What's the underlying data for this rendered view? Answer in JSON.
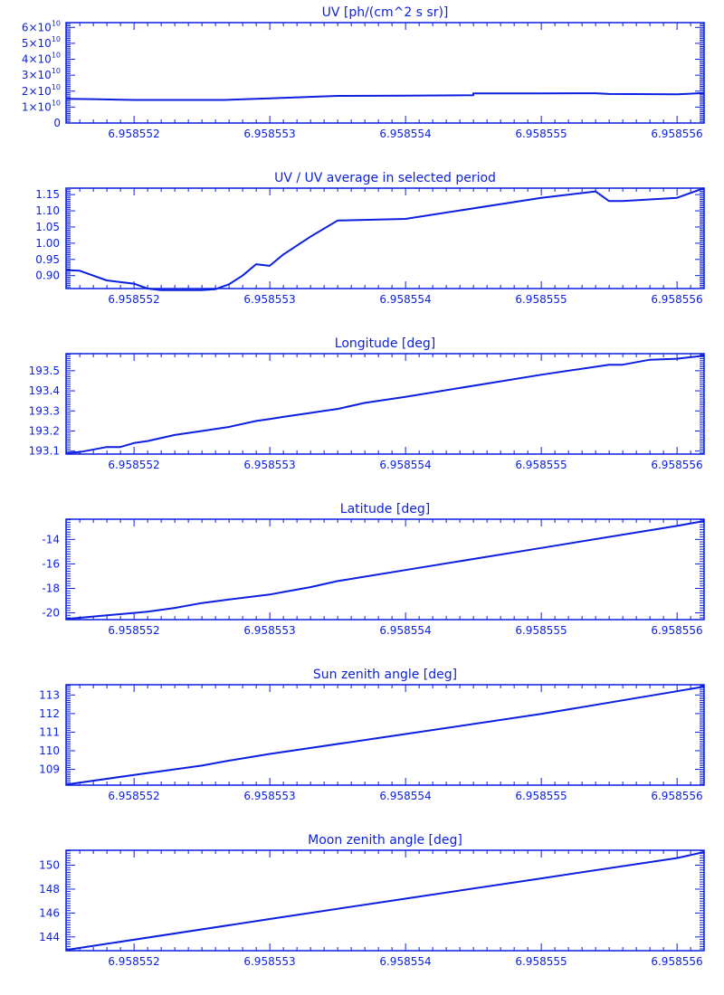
{
  "colors": {
    "plot": "#0b1fe0",
    "background": "#ffffff"
  },
  "x_tick_labels": [
    "6.958552",
    "6.958553",
    "6.958554",
    "6.958555",
    "6.958556"
  ],
  "chart_data": [
    {
      "type": "line",
      "title": "UV [ph/(cm^2 s sr)]",
      "x": [
        6.9585515,
        6.9585517,
        6.958552,
        6.958552667,
        6.958553,
        6.9585535,
        6.958554,
        6.9585545,
        6.9585545,
        6.958555,
        6.9585554,
        6.9585555,
        6.958556,
        6.9585562
      ],
      "y": [
        15200000000.0,
        15000000000.0,
        14500000000.0,
        14500000000.0,
        15500000000.0,
        17000000000.0,
        17200000000.0,
        17400000000.0,
        18600000000.0,
        18600000000.0,
        18700000000.0,
        18200000000.0,
        18000000000.0,
        18800000000.0
      ],
      "xlim": [
        6.9585515,
        6.9585562
      ],
      "ylim": [
        0,
        63000000000.0
      ],
      "ytick_values": [
        0,
        10000000000.0,
        20000000000.0,
        30000000000.0,
        40000000000.0,
        50000000000.0,
        60000000000.0
      ],
      "ytick_mantissa": [
        "0",
        "1",
        "2",
        "3",
        "4",
        "5",
        "6"
      ],
      "ytick_base": "×10",
      "ytick_exponent": "10",
      "grid": false
    },
    {
      "type": "line",
      "title": "UV / UV average in selected period",
      "x": [
        6.9585515,
        6.9585516,
        6.9585518,
        6.958552,
        6.9585521,
        6.9585522,
        6.9585525,
        6.9585526,
        6.9585527,
        6.9585528,
        6.9585529,
        6.958553,
        6.9585531,
        6.9585533,
        6.9585535,
        6.958554,
        6.958555,
        6.9585554,
        6.9585555,
        6.9585556,
        6.958556,
        6.9585562
      ],
      "y": [
        0.917,
        0.915,
        0.885,
        0.875,
        0.86,
        0.855,
        0.855,
        0.858,
        0.873,
        0.9,
        0.935,
        0.93,
        0.965,
        1.02,
        1.07,
        1.075,
        1.14,
        1.16,
        1.13,
        1.13,
        1.14,
        1.17
      ],
      "xlim": [
        6.9585515,
        6.9585562
      ],
      "ylim": [
        0.86,
        1.17
      ],
      "ytick_values": [
        0.9,
        0.95,
        1.0,
        1.05,
        1.1,
        1.15
      ],
      "ytick_labels": [
        "0.90",
        "0.95",
        "1.00",
        "1.05",
        "1.10",
        "1.15"
      ],
      "grid": false
    },
    {
      "type": "line",
      "title": "Longitude [deg]",
      "x": [
        6.9585515,
        6.9585516,
        6.9585518,
        6.9585519,
        6.958552,
        6.9585521,
        6.9585523,
        6.9585525,
        6.9585527,
        6.9585529,
        6.958553,
        6.9585531,
        6.9585533,
        6.9585534,
        6.9585535,
        6.9585537,
        6.958554,
        6.958555,
        6.9585555,
        6.9585556,
        6.9585558,
        6.958556,
        6.9585562
      ],
      "y": [
        193.09,
        193.095,
        193.12,
        193.12,
        193.14,
        193.15,
        193.18,
        193.2,
        193.22,
        193.25,
        193.26,
        193.27,
        193.29,
        193.3,
        193.31,
        193.34,
        193.37,
        193.48,
        193.53,
        193.53,
        193.555,
        193.56,
        193.575
      ],
      "xlim": [
        6.9585515,
        6.9585562
      ],
      "ylim": [
        193.085,
        193.585
      ],
      "ytick_values": [
        193.1,
        193.2,
        193.3,
        193.4,
        193.5
      ],
      "ytick_labels": [
        "193.1",
        "193.2",
        "193.3",
        "193.4",
        "193.5"
      ],
      "grid": false
    },
    {
      "type": "line",
      "title": "Latitude [deg]",
      "x": [
        6.9585515,
        6.9585516,
        6.9585517,
        6.9585518,
        6.958552,
        6.9585521,
        6.9585523,
        6.9585525,
        6.9585527,
        6.958553,
        6.9585531,
        6.9585533,
        6.9585535,
        6.958554,
        6.958555,
        6.958556,
        6.9585562
      ],
      "y": [
        -20.5,
        -20.4,
        -20.3,
        -20.2,
        -20.0,
        -19.9,
        -19.6,
        -19.2,
        -18.9,
        -18.5,
        -18.3,
        -17.9,
        -17.4,
        -16.5,
        -14.7,
        -12.9,
        -12.5
      ],
      "xlim": [
        6.9585515,
        6.9585562
      ],
      "ylim": [
        -20.55,
        -12.35
      ],
      "ytick_values": [
        -20,
        -18,
        -16,
        -14
      ],
      "ytick_labels": [
        "-20",
        "-18",
        "-16",
        "-14"
      ],
      "grid": false
    },
    {
      "type": "line",
      "title": "Sun zenith angle [deg]",
      "x": [
        6.9585515,
        6.958552,
        6.9585525,
        6.9585527,
        6.958553,
        6.958554,
        6.958555,
        6.958556,
        6.9585562
      ],
      "y": [
        108.18,
        108.7,
        109.2,
        109.47,
        109.83,
        110.9,
        111.98,
        113.2,
        113.45
      ],
      "xlim": [
        6.9585515,
        6.9585562
      ],
      "ylim": [
        108.15,
        113.55
      ],
      "ytick_values": [
        109,
        110,
        111,
        112,
        113
      ],
      "ytick_labels": [
        "109",
        "110",
        "111",
        "112",
        "113"
      ],
      "grid": false
    },
    {
      "type": "line",
      "title": "Moon zenith angle [deg]",
      "x": [
        6.9585515,
        6.958553,
        6.958554,
        6.958555,
        6.958556,
        6.9585562
      ],
      "y": [
        142.9,
        145.5,
        147.2,
        148.9,
        150.6,
        151.1
      ],
      "xlim": [
        6.9585515,
        6.9585562
      ],
      "ylim": [
        142.85,
        151.25
      ],
      "ytick_values": [
        144,
        146,
        148,
        150
      ],
      "ytick_labels": [
        "144",
        "146",
        "148",
        "150"
      ],
      "grid": false
    }
  ]
}
